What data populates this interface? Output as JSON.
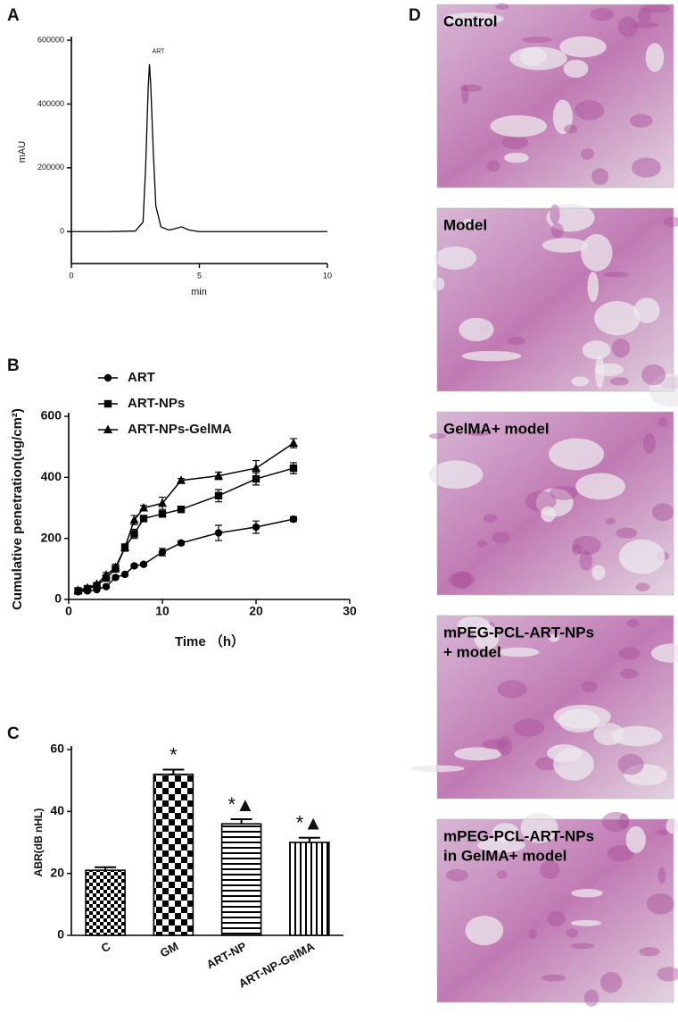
{
  "chart_data": [
    {
      "type": "line",
      "panel_label": "A",
      "x": [
        0,
        1.5,
        2.5,
        2.8,
        2.9,
        3.0,
        3.05,
        3.1,
        3.2,
        3.3,
        3.5,
        3.8,
        4.0,
        4.3,
        4.6,
        5,
        10
      ],
      "values": [
        0,
        0,
        2000,
        30000,
        200000,
        450000,
        525000,
        460000,
        250000,
        80000,
        15000,
        5000,
        8000,
        15000,
        5000,
        0,
        0
      ],
      "color": "#000000",
      "xlim": [
        0,
        10
      ],
      "xticks": [
        0,
        5,
        10
      ],
      "ylim": [
        -100000,
        600000
      ],
      "yticks": [
        0,
        200000,
        400000,
        600000
      ],
      "xlabel": "min",
      "ylabel": "mAU",
      "annotation": "ART"
    },
    {
      "type": "errorline",
      "panel_label": "B",
      "x": [
        1,
        2,
        3,
        4,
        5,
        6,
        7,
        8,
        10,
        12,
        16,
        20,
        24
      ],
      "series": [
        {
          "name": "ART",
          "marker": "circle",
          "color": "#000000",
          "values": [
            25,
            28,
            32,
            42,
            72,
            82,
            110,
            115,
            155,
            185,
            218,
            237,
            263
          ],
          "errors": [
            3,
            3,
            3,
            4,
            6,
            5,
            5,
            5,
            12,
            6,
            25,
            20,
            8
          ]
        },
        {
          "name": "ART-NPs",
          "marker": "square",
          "color": "#000000",
          "values": [
            28,
            35,
            45,
            70,
            100,
            170,
            215,
            265,
            280,
            295,
            340,
            395,
            430
          ],
          "errors": [
            3,
            4,
            4,
            6,
            8,
            12,
            15,
            10,
            10,
            8,
            20,
            20,
            18
          ]
        },
        {
          "name": "ART-NPs-GelMA",
          "marker": "triangle",
          "color": "#000000",
          "values": [
            30,
            38,
            50,
            80,
            105,
            170,
            260,
            300,
            315,
            390,
            405,
            430,
            512
          ],
          "errors": [
            4,
            5,
            5,
            8,
            10,
            10,
            15,
            8,
            20,
            6,
            12,
            25,
            15
          ]
        }
      ],
      "xlim": [
        0,
        30
      ],
      "xticks": [
        0,
        10,
        20,
        30
      ],
      "ylim": [
        0,
        600
      ],
      "yticks": [
        0,
        200,
        400,
        600
      ],
      "xlabel": "Time （h）",
      "ylabel": "Cumulative penetration(ug/cm²)"
    },
    {
      "type": "bar",
      "panel_label": "C",
      "categories": [
        "C",
        "GM",
        "ART-NP",
        "ART-NP-GelMA"
      ],
      "values": [
        21,
        52,
        36,
        30
      ],
      "errors": [
        1,
        1.5,
        1.5,
        1.5
      ],
      "annotations": [
        null,
        "*",
        "*▲",
        "*▲"
      ],
      "ylim": [
        0,
        60
      ],
      "yticks": [
        0,
        20,
        40,
        60
      ],
      "ylabel": "ABR(dB nHL)"
    }
  ],
  "image_panel": {
    "panel_label": "D",
    "images": [
      {
        "label_lines": [
          "Control"
        ]
      },
      {
        "label_lines": [
          "Model"
        ]
      },
      {
        "label_lines": [
          "GelMA+ model"
        ]
      },
      {
        "label_lines": [
          "mPEG-PCL-ART-NPs",
          "+ model"
        ]
      },
      {
        "label_lines": [
          "mPEG-PCL-ART-NPs",
          "in GelMA+ model"
        ]
      }
    ]
  }
}
